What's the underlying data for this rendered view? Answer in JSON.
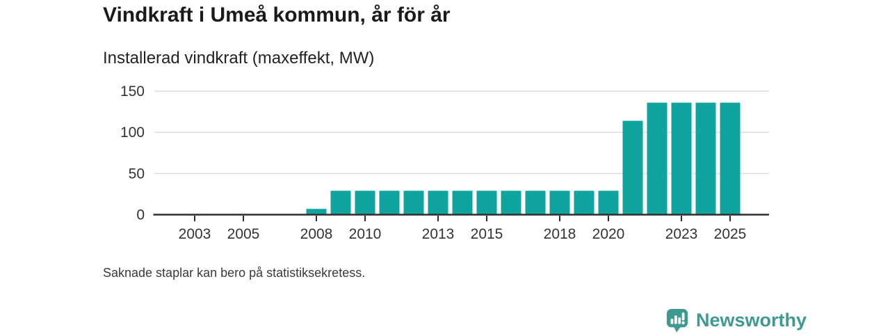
{
  "header": {
    "title": "Vindkraft i Umeå kommun, år för år",
    "subtitle": "Installerad vindkraft (maxeffekt, MW)"
  },
  "footnote": "Saknade staplar kan bero på statistiksekretess.",
  "branding": {
    "name": "Newsworthy",
    "icon": "bar-chart-speech-bubble-icon",
    "brand_color": "#3e9a90"
  },
  "chart_data": {
    "type": "bar",
    "title": "Vindkraft i Umeå kommun, år för år",
    "subtitle": "Installerad vindkraft (maxeffekt, MW)",
    "ylabel": "",
    "xlabel": "",
    "unit": "MW",
    "categories": [
      2002,
      2003,
      2004,
      2005,
      2006,
      2007,
      2008,
      2009,
      2010,
      2011,
      2012,
      2013,
      2014,
      2015,
      2016,
      2017,
      2018,
      2019,
      2020,
      2021,
      2022,
      2023,
      2024,
      2025
    ],
    "values": [
      null,
      null,
      null,
      null,
      null,
      null,
      7,
      29,
      29,
      29,
      29,
      29,
      29,
      29,
      29,
      29,
      29,
      29,
      29,
      114,
      136,
      136,
      136,
      136
    ],
    "missing_values_note": "Saknade staplar kan bero på statistiksekretess.",
    "ylim": [
      0,
      150
    ],
    "yticks": [
      0,
      50,
      100,
      150
    ],
    "xticks": [
      2003,
      2005,
      2008,
      2010,
      2013,
      2015,
      2018,
      2020,
      2023,
      2025
    ],
    "grid": "horizontal",
    "legend": "none",
    "bar_color": "#10a49e",
    "grid_color": "#dcdcdc",
    "axis_color": "#2e2e2e",
    "tick_label_color": "#333333"
  }
}
